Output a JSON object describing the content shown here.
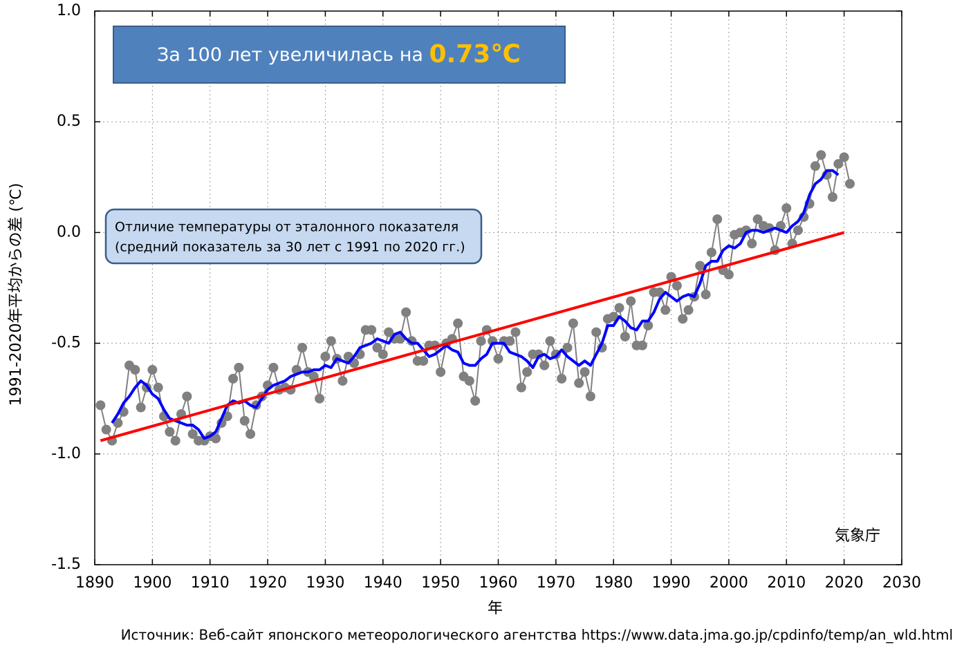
{
  "chart_data": {
    "type": "line",
    "title": "За 100 лет увеличилась на ",
    "title_highlight": "0.73℃",
    "annotation": [
      "Отличие температуры от эталонного показателя",
      "(средний показатель за 30 лет с 1991 по 2020 гг.)"
    ],
    "ylabel": "1991-2020年平均からの差 (℃)",
    "xlabel": "年",
    "credit": "気象庁",
    "source": "Источник: Веб-сайт японского метеорологического агентства https://www.data.jma.go.jp/cpdinfo/temp/an_wld.html",
    "xlim": [
      1890,
      2030
    ],
    "xticks": [
      1890,
      1900,
      1910,
      1920,
      1930,
      1940,
      1950,
      1960,
      1970,
      1980,
      1990,
      2000,
      2010,
      2020,
      2030
    ],
    "ylim": [
      -1.5,
      1.0
    ],
    "yticks": [
      {
        "value": -1.5,
        "label": "-1.5"
      },
      {
        "value": -1,
        "label": "-1.0"
      },
      {
        "value": -0.5,
        "label": "-0.5"
      },
      {
        "value": 0,
        "label": "0.0"
      },
      {
        "value": 0.5,
        "label": "0.5"
      },
      {
        "value": 1,
        "label": "1.0"
      }
    ],
    "grid": true,
    "series": [
      {
        "color": "#808080",
        "markers": true,
        "x": [
          1891,
          1892,
          1893,
          1894,
          1895,
          1896,
          1897,
          1898,
          1899,
          1900,
          1901,
          1902,
          1903,
          1904,
          1905,
          1906,
          1907,
          1908,
          1909,
          1910,
          1911,
          1912,
          1913,
          1914,
          1915,
          1916,
          1917,
          1918,
          1919,
          1920,
          1921,
          1922,
          1923,
          1924,
          1925,
          1926,
          1927,
          1928,
          1929,
          1930,
          1931,
          1932,
          1933,
          1934,
          1935,
          1936,
          1937,
          1938,
          1939,
          1940,
          1941,
          1942,
          1943,
          1944,
          1945,
          1946,
          1947,
          1948,
          1949,
          1950,
          1951,
          1952,
          1953,
          1954,
          1955,
          1956,
          1957,
          1958,
          1959,
          1960,
          1961,
          1962,
          1963,
          1964,
          1965,
          1966,
          1967,
          1968,
          1969,
          1970,
          1971,
          1972,
          1973,
          1974,
          1975,
          1976,
          1977,
          1978,
          1979,
          1980,
          1981,
          1982,
          1983,
          1984,
          1985,
          1986,
          1987,
          1988,
          1989,
          1990,
          1991,
          1992,
          1993,
          1994,
          1995,
          1996,
          1997,
          1998,
          1999,
          2000,
          2001,
          2002,
          2003,
          2004,
          2005,
          2006,
          2007,
          2008,
          2009,
          2010,
          2011,
          2012,
          2013,
          2014,
          2015,
          2016,
          2017,
          2018,
          2019,
          2020,
          2021
        ],
        "values": [
          -0.78,
          -0.89,
          -0.94,
          -0.86,
          -0.81,
          -0.6,
          -0.62,
          -0.79,
          -0.7,
          -0.62,
          -0.7,
          -0.83,
          -0.9,
          -0.94,
          -0.82,
          -0.74,
          -0.91,
          -0.94,
          -0.94,
          -0.92,
          -0.93,
          -0.86,
          -0.83,
          -0.66,
          -0.61,
          -0.85,
          -0.91,
          -0.78,
          -0.74,
          -0.69,
          -0.61,
          -0.71,
          -0.7,
          -0.71,
          -0.62,
          -0.52,
          -0.63,
          -0.65,
          -0.75,
          -0.56,
          -0.49,
          -0.57,
          -0.67,
          -0.56,
          -0.59,
          -0.55,
          -0.44,
          -0.44,
          -0.52,
          -0.55,
          -0.45,
          -0.48,
          -0.48,
          -0.36,
          -0.49,
          -0.58,
          -0.58,
          -0.51,
          -0.51,
          -0.63,
          -0.5,
          -0.48,
          -0.41,
          -0.65,
          -0.67,
          -0.76,
          -0.49,
          -0.44,
          -0.49,
          -0.57,
          -0.49,
          -0.49,
          -0.45,
          -0.7,
          -0.63,
          -0.55,
          -0.55,
          -0.6,
          -0.49,
          -0.55,
          -0.66,
          -0.52,
          -0.41,
          -0.68,
          -0.63,
          -0.74,
          -0.45,
          -0.52,
          -0.39,
          -0.38,
          -0.34,
          -0.47,
          -0.31,
          -0.51,
          -0.51,
          -0.42,
          -0.27,
          -0.27,
          -0.35,
          -0.2,
          -0.24,
          -0.39,
          -0.35,
          -0.29,
          -0.15,
          -0.28,
          -0.09,
          0.06,
          -0.17,
          -0.19,
          -0.01,
          0.0,
          0.01,
          -0.05,
          0.06,
          0.03,
          0.02,
          -0.08,
          0.03,
          0.11,
          -0.05,
          0.01,
          0.07,
          0.13,
          0.3,
          0.35,
          0.26,
          0.16,
          0.31,
          0.34,
          0.22
        ]
      },
      {
        "color": "#0000ff",
        "markers": false,
        "x": [
          1893,
          1894,
          1895,
          1896,
          1897,
          1898,
          1899,
          1900,
          1901,
          1902,
          1903,
          1904,
          1905,
          1906,
          1907,
          1908,
          1909,
          1910,
          1911,
          1912,
          1913,
          1914,
          1915,
          1916,
          1917,
          1918,
          1919,
          1920,
          1921,
          1922,
          1923,
          1924,
          1925,
          1926,
          1927,
          1928,
          1929,
          1930,
          1931,
          1932,
          1933,
          1934,
          1935,
          1936,
          1937,
          1938,
          1939,
          1940,
          1941,
          1942,
          1943,
          1944,
          1945,
          1946,
          1947,
          1948,
          1949,
          1950,
          1951,
          1952,
          1953,
          1954,
          1955,
          1956,
          1957,
          1958,
          1959,
          1960,
          1961,
          1962,
          1963,
          1964,
          1965,
          1966,
          1967,
          1968,
          1969,
          1970,
          1971,
          1972,
          1973,
          1974,
          1975,
          1976,
          1977,
          1978,
          1979,
          1980,
          1981,
          1982,
          1983,
          1984,
          1985,
          1986,
          1987,
          1988,
          1989,
          1990,
          1991,
          1992,
          1993,
          1994,
          1995,
          1996,
          1997,
          1998,
          1999,
          2000,
          2001,
          2002,
          2003,
          2004,
          2005,
          2006,
          2007,
          2008,
          2009,
          2010,
          2011,
          2012,
          2013,
          2014,
          2015,
          2016,
          2017,
          2018,
          2019
        ],
        "values": [
          -0.86,
          -0.82,
          -0.77,
          -0.74,
          -0.7,
          -0.67,
          -0.69,
          -0.73,
          -0.75,
          -0.8,
          -0.84,
          -0.85,
          -0.86,
          -0.87,
          -0.87,
          -0.89,
          -0.93,
          -0.92,
          -0.9,
          -0.84,
          -0.78,
          -0.76,
          -0.77,
          -0.76,
          -0.78,
          -0.79,
          -0.75,
          -0.71,
          -0.69,
          -0.68,
          -0.67,
          -0.65,
          -0.64,
          -0.63,
          -0.63,
          -0.62,
          -0.62,
          -0.6,
          -0.61,
          -0.57,
          -0.58,
          -0.59,
          -0.56,
          -0.52,
          -0.51,
          -0.5,
          -0.48,
          -0.49,
          -0.5,
          -0.46,
          -0.45,
          -0.48,
          -0.5,
          -0.5,
          -0.53,
          -0.56,
          -0.55,
          -0.53,
          -0.51,
          -0.53,
          -0.54,
          -0.59,
          -0.6,
          -0.6,
          -0.57,
          -0.55,
          -0.5,
          -0.5,
          -0.5,
          -0.54,
          -0.55,
          -0.56,
          -0.58,
          -0.61,
          -0.56,
          -0.55,
          -0.57,
          -0.56,
          -0.53,
          -0.56,
          -0.58,
          -0.6,
          -0.58,
          -0.6,
          -0.55,
          -0.5,
          -0.42,
          -0.42,
          -0.38,
          -0.4,
          -0.43,
          -0.44,
          -0.4,
          -0.4,
          -0.36,
          -0.3,
          -0.27,
          -0.29,
          -0.31,
          -0.29,
          -0.28,
          -0.29,
          -0.23,
          -0.15,
          -0.13,
          -0.13,
          -0.08,
          -0.06,
          -0.07,
          -0.05,
          0.0,
          0.01,
          0.01,
          0.0,
          0.01,
          0.02,
          0.01,
          0.0,
          0.03,
          0.05,
          0.09,
          0.17,
          0.22,
          0.24,
          0.28,
          0.28,
          0.26
        ]
      },
      {
        "color": "#ff0000",
        "markers": false,
        "x": [
          1891,
          2020
        ],
        "values": [
          -0.94,
          0.0
        ]
      }
    ]
  }
}
